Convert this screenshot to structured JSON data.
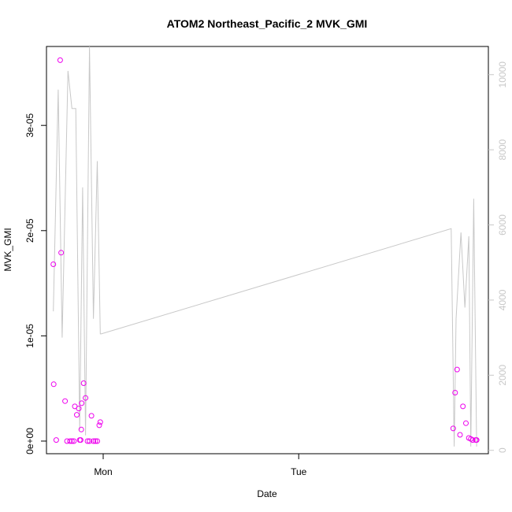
{
  "chart_data": {
    "type": "scatter",
    "title": "ATOM2 Northeast_Pacific_2 MVK_GMI",
    "xlabel": "Date",
    "ylabel": "MVK_GMI",
    "xlim": [
      -0.29,
      1.97
    ],
    "ylim": [
      -1.2e-06,
      3.75e-05
    ],
    "y2lim": [
      -90,
      10750
    ],
    "x_ticks": [
      {
        "value": 0,
        "label": "Mon"
      },
      {
        "value": 1,
        "label": "Tue"
      }
    ],
    "y_ticks": [
      {
        "value": 0,
        "label": "0e+00"
      },
      {
        "value": 1e-05,
        "label": "1e-05"
      },
      {
        "value": 2e-05,
        "label": "2e-05"
      },
      {
        "value": 3e-05,
        "label": "3e-05"
      }
    ],
    "y2_ticks": [
      {
        "value": 0,
        "label": "0"
      },
      {
        "value": 2000,
        "label": "2000"
      },
      {
        "value": 4000,
        "label": "4000"
      },
      {
        "value": 6000,
        "label": "6000"
      },
      {
        "value": 8000,
        "label": "8000"
      },
      {
        "value": 10000,
        "label": "10000"
      }
    ],
    "colors": {
      "points": "#ee00ee",
      "line": "#c8c8c8",
      "axis": "#000000",
      "right_axis": "#c8c8c8"
    },
    "grid": false,
    "series": [
      {
        "axis": "left",
        "style": "points",
        "points": [
          [
            -0.255,
            1.68e-05
          ],
          [
            -0.253,
            5.4e-06
          ],
          [
            -0.24,
            1e-07
          ],
          [
            -0.22,
            3.62e-05
          ],
          [
            -0.215,
            1.79e-05
          ],
          [
            -0.195,
            3.8e-06
          ],
          [
            -0.185,
            0.0
          ],
          [
            -0.17,
            0.0
          ],
          [
            -0.16,
            0.0
          ],
          [
            -0.15,
            0.0
          ],
          [
            -0.145,
            3.3e-06
          ],
          [
            -0.135,
            2.5e-06
          ],
          [
            -0.125,
            3.1e-06
          ],
          [
            -0.12,
            1e-07
          ],
          [
            -0.115,
            1e-07
          ],
          [
            -0.112,
            1.1e-06
          ],
          [
            -0.11,
            3.6e-06
          ],
          [
            -0.1,
            5.5e-06
          ],
          [
            -0.09,
            4.1e-06
          ],
          [
            -0.08,
            0.0
          ],
          [
            -0.07,
            0.0
          ],
          [
            -0.06,
            2.4e-06
          ],
          [
            -0.05,
            0.0
          ],
          [
            -0.04,
            0.0
          ],
          [
            -0.03,
            0.0
          ],
          [
            -0.02,
            1.5e-06
          ],
          [
            -0.015,
            1.8e-06
          ],
          [
            1.79,
            1.2e-06
          ],
          [
            1.8,
            4.6e-06
          ],
          [
            1.81,
            6.8e-06
          ],
          [
            1.825,
            6e-07
          ],
          [
            1.84,
            3.3e-06
          ],
          [
            1.855,
            1.7e-06
          ],
          [
            1.87,
            3e-07
          ],
          [
            1.88,
            2e-07
          ],
          [
            1.89,
            1e-07
          ],
          [
            1.905,
            1e-07
          ],
          [
            1.91,
            1e-07
          ]
        ]
      },
      {
        "axis": "right",
        "style": "line",
        "points": [
          [
            -0.255,
            3700
          ],
          [
            -0.23,
            9600
          ],
          [
            -0.21,
            3000
          ],
          [
            -0.18,
            10100
          ],
          [
            -0.16,
            9100
          ],
          [
            -0.14,
            9100
          ],
          [
            -0.12,
            550
          ],
          [
            -0.105,
            7000
          ],
          [
            -0.09,
            400
          ],
          [
            -0.07,
            10750
          ],
          [
            -0.05,
            3500
          ],
          [
            -0.03,
            7700
          ],
          [
            -0.015,
            3100
          ],
          [
            -0.01,
            3100
          ],
          [
            1.78,
            5900
          ],
          [
            1.795,
            100
          ],
          [
            1.805,
            3500
          ],
          [
            1.83,
            5800
          ],
          [
            1.85,
            3800
          ],
          [
            1.87,
            5700
          ],
          [
            1.88,
            100
          ],
          [
            1.895,
            6700
          ],
          [
            1.91,
            100
          ]
        ]
      }
    ]
  }
}
